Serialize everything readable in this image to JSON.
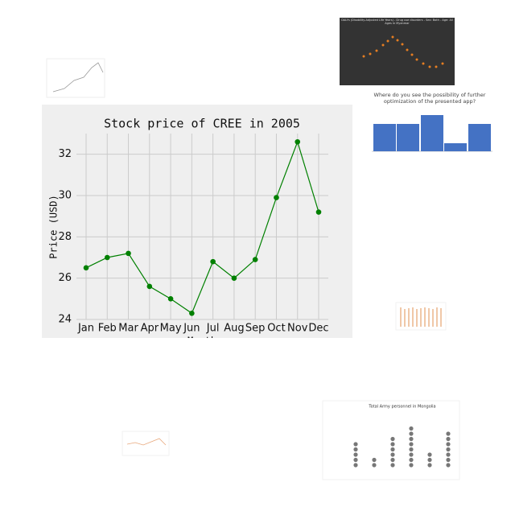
{
  "chart_data": {
    "type": "line",
    "title": "Stock price of CREE in 2005",
    "x_label": "Month",
    "y_label": "Price (USD)",
    "categories": [
      "Jan",
      "Feb",
      "Mar",
      "Apr",
      "May",
      "Jun",
      "Jul",
      "Aug",
      "Sep",
      "Oct",
      "Nov",
      "Dec"
    ],
    "series": [
      {
        "name": "CREE",
        "color": "#008000",
        "values": [
          26.5,
          27.0,
          27.2,
          25.6,
          25.0,
          24.3,
          26.8,
          26.0,
          26.9,
          29.9,
          32.6,
          29.2
        ]
      }
    ],
    "ylim": [
      24,
      33
    ],
    "yticks": [
      24,
      26,
      28,
      30,
      32
    ],
    "grid": true
  },
  "thumbnails": {
    "dalys_title": "DALYs (Disability-Adjusted Life Years) - Drug use disorders - Sex: Both - Age: All Ages in Myanmar",
    "survey_title": "Where do you see the possibility of further optimization of the presented app?",
    "army_title": "Total Army personnel in Mongolia"
  }
}
